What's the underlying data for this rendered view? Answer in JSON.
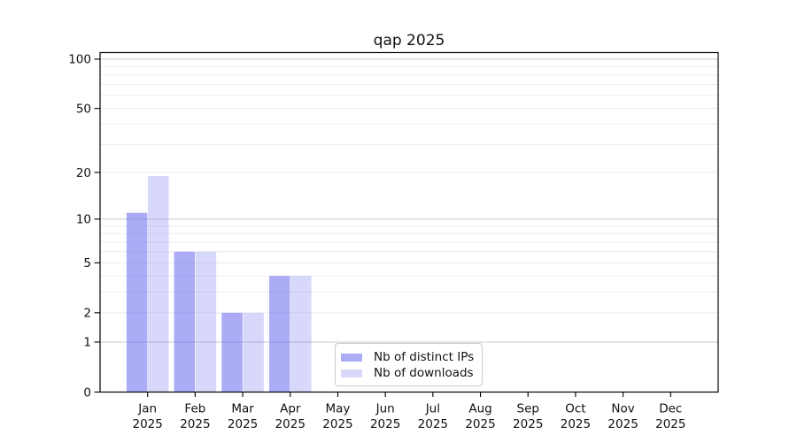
{
  "chart_data": {
    "type": "bar",
    "title": "qap 2025",
    "year_label": "2025",
    "categories": [
      "Jan",
      "Feb",
      "Mar",
      "Apr",
      "May",
      "Jun",
      "Jul",
      "Aug",
      "Sep",
      "Oct",
      "Nov",
      "Dec"
    ],
    "series": [
      {
        "name": "Nb of distinct IPs",
        "color": "rgba(120,120,240,0.62)",
        "values": [
          11,
          6,
          2,
          4,
          0,
          0,
          0,
          0,
          0,
          0,
          0,
          0
        ]
      },
      {
        "name": "Nb of downloads",
        "color": "rgba(120,120,240,0.29)",
        "values": [
          19,
          6,
          2,
          4,
          0,
          0,
          0,
          0,
          0,
          0,
          0,
          0
        ]
      }
    ],
    "yscale": "log1p",
    "ylim": [
      0,
      111
    ],
    "yticks": [
      100,
      50,
      20,
      10,
      5,
      2,
      1,
      0
    ],
    "minor_gridlines": [
      3,
      4,
      6,
      7,
      8,
      9,
      30,
      40,
      60,
      70,
      80,
      90
    ],
    "decade_gridlines": [
      1,
      10,
      100
    ],
    "grid": "horizontal",
    "legend_position": "lower center",
    "background": "#ffffff",
    "colors": {
      "minor_grid": "#ececec",
      "major_grid": "#ececec",
      "decade_grid": "#c8c8c8",
      "frame": "#000000"
    }
  }
}
